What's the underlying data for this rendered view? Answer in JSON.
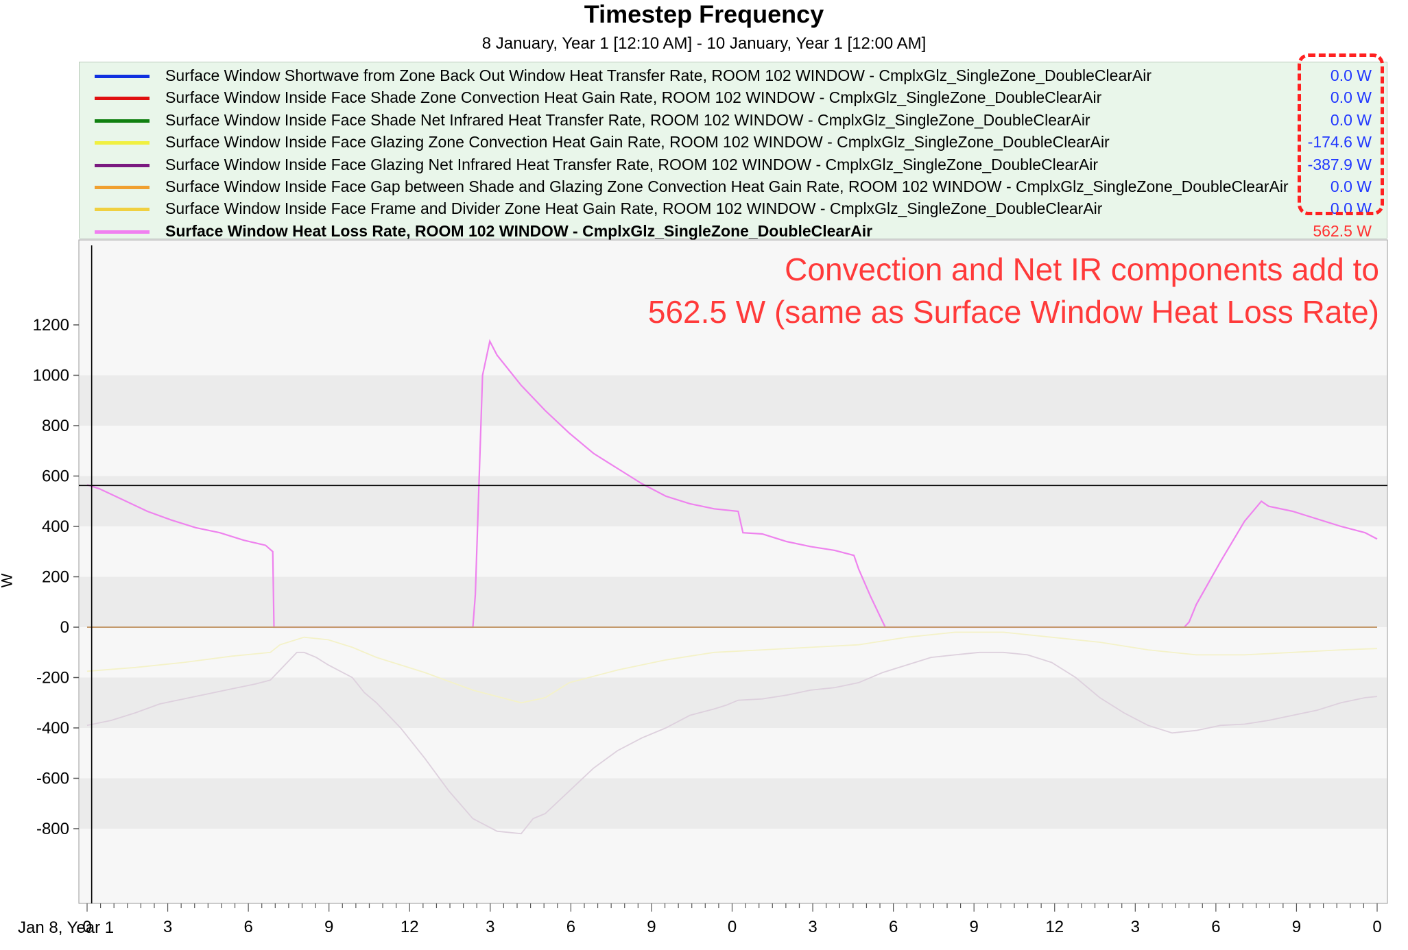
{
  "title": "Timestep Frequency",
  "subtitle": "8 January, Year 1 [12:10 AM] - 10 January, Year 1 [12:00 AM]",
  "x_start_label": "Jan 8, Year 1",
  "y_axis_label": "W",
  "annotation": {
    "line1": "Convection and Net IR components add to",
    "line2": "562.5 W (same as Surface Window Heat Loss Rate)",
    "color": "#ff3a3a"
  },
  "legend": [
    {
      "label": "Surface Window Shortwave from Zone Back Out Window Heat Transfer Rate, ROOM 102 WINDOW - CmplxGlz_SingleZone_DoubleClearAir",
      "value": "0.0 W",
      "color": "#1030e0"
    },
    {
      "label": "Surface Window Inside Face Shade Zone Convection Heat Gain Rate, ROOM 102 WINDOW - CmplxGlz_SingleZone_DoubleClearAir",
      "value": "0.0 W",
      "color": "#e01010"
    },
    {
      "label": "Surface Window Inside Face Shade Net Infrared Heat Transfer Rate, ROOM 102 WINDOW - CmplxGlz_SingleZone_DoubleClearAir",
      "value": "0.0 W",
      "color": "#108010"
    },
    {
      "label": "Surface Window Inside Face Glazing Zone Convection Heat Gain Rate, ROOM 102 WINDOW - CmplxGlz_SingleZone_DoubleClearAir",
      "value": "-174.6 W",
      "color": "#f0f040"
    },
    {
      "label": "Surface Window Inside Face Glazing Net Infrared Heat Transfer Rate, ROOM 102 WINDOW - CmplxGlz_SingleZone_DoubleClearAir",
      "value": "-387.9 W",
      "color": "#7a1a80"
    },
    {
      "label": "Surface Window Inside Face Gap between Shade and Glazing Zone Convection Heat Gain Rate, ROOM 102 WINDOW - CmplxGlz_SingleZone_DoubleClearAir",
      "value": "0.0 W",
      "color": "#f0a030"
    },
    {
      "label": "Surface Window Inside Face Frame and Divider Zone Heat Gain Rate, ROOM 102 WINDOW - CmplxGlz_SingleZone_DoubleClearAir",
      "value": "0.0 W",
      "color": "#f0d040"
    },
    {
      "label": "Surface Window Heat Loss Rate, ROOM 102 WINDOW - CmplxGlz_SingleZone_DoubleClearAir",
      "value": "562.5 W",
      "color": "#f080f0",
      "bold": true
    }
  ],
  "chart_data": {
    "type": "line",
    "title": "Timestep Frequency",
    "subtitle": "8 January, Year 1 [12:10 AM] - 10 January, Year 1 [12:00 AM]",
    "xlabel": "",
    "ylabel": "W",
    "x_range_hours": [
      0,
      48
    ],
    "ylim": [
      -920,
      1230
    ],
    "y_ticks": [
      1200,
      1000,
      800,
      600,
      400,
      200,
      0,
      -200,
      -400,
      -600,
      -800
    ],
    "x_tick_hours": [
      0,
      3,
      6,
      9,
      12,
      15,
      18,
      21,
      24,
      27,
      30,
      33,
      36,
      39,
      42,
      45,
      48
    ],
    "x_tick_labels": [
      "0",
      "3",
      "6",
      "9",
      "12",
      "3",
      "6",
      "9",
      "0",
      "3",
      "6",
      "9",
      "12",
      "3",
      "6",
      "9",
      "0"
    ],
    "cursor": {
      "x_hours": 0.17,
      "y": 562.5
    },
    "grid": "horizontal bands",
    "legend_position": "top",
    "series": [
      {
        "name": "Surface Window Heat Loss Rate, ROOM 102 WINDOW - CmplxGlz_SingleZone_DoubleClearAir",
        "color": "#ee82ee",
        "points": [
          [
            0,
            565
          ],
          [
            0.5,
            550
          ],
          [
            1.5,
            505
          ],
          [
            2.5,
            460
          ],
          [
            3.5,
            425
          ],
          [
            4.5,
            395
          ],
          [
            5.5,
            375
          ],
          [
            6.5,
            345
          ],
          [
            7.4,
            325
          ],
          [
            7.7,
            300
          ],
          [
            7.75,
            0
          ],
          [
            16,
            0
          ],
          [
            16.1,
            130
          ],
          [
            16.4,
            1000
          ],
          [
            16.7,
            1135
          ],
          [
            17,
            1080
          ],
          [
            18,
            960
          ],
          [
            19,
            860
          ],
          [
            20,
            770
          ],
          [
            21,
            690
          ],
          [
            22,
            630
          ],
          [
            23,
            570
          ],
          [
            24,
            520
          ],
          [
            25,
            490
          ],
          [
            26,
            470
          ],
          [
            27,
            460
          ],
          [
            27.2,
            375
          ],
          [
            28,
            370
          ],
          [
            29,
            340
          ],
          [
            30,
            320
          ],
          [
            31,
            305
          ],
          [
            31.8,
            285
          ],
          [
            32,
            230
          ],
          [
            32.5,
            120
          ],
          [
            33,
            20
          ],
          [
            33.1,
            0
          ],
          [
            45.5,
            0
          ],
          [
            45.7,
            20
          ],
          [
            46,
            90
          ],
          [
            47,
            260
          ],
          [
            48,
            420
          ],
          [
            48.7,
            500
          ],
          [
            49,
            480
          ],
          [
            50,
            460
          ],
          [
            51,
            430
          ],
          [
            52,
            400
          ],
          [
            53,
            375
          ],
          [
            53.5,
            350
          ]
        ]
      },
      {
        "name": "Surface Window Inside Face Glazing Net Infrared Heat Transfer Rate, ROOM 102 WINDOW - CmplxGlz_SingleZone_DoubleClearAir",
        "color": "#ddd0dd",
        "points": [
          [
            0,
            -390
          ],
          [
            1,
            -370
          ],
          [
            2,
            -340
          ],
          [
            3,
            -305
          ],
          [
            4,
            -285
          ],
          [
            5,
            -265
          ],
          [
            6,
            -245
          ],
          [
            7,
            -225
          ],
          [
            7.6,
            -210
          ],
          [
            8,
            -170
          ],
          [
            8.7,
            -100
          ],
          [
            9,
            -100
          ],
          [
            9.5,
            -120
          ],
          [
            10,
            -150
          ],
          [
            11,
            -200
          ],
          [
            11.5,
            -260
          ],
          [
            12,
            -300
          ],
          [
            13,
            -400
          ],
          [
            14,
            -520
          ],
          [
            15,
            -650
          ],
          [
            16,
            -760
          ],
          [
            17,
            -810
          ],
          [
            18,
            -820
          ],
          [
            18.5,
            -760
          ],
          [
            19,
            -740
          ],
          [
            20,
            -650
          ],
          [
            21,
            -560
          ],
          [
            22,
            -490
          ],
          [
            23,
            -440
          ],
          [
            24,
            -400
          ],
          [
            25,
            -350
          ],
          [
            26,
            -325
          ],
          [
            26.5,
            -310
          ],
          [
            27,
            -290
          ],
          [
            28,
            -285
          ],
          [
            29,
            -270
          ],
          [
            30,
            -250
          ],
          [
            31,
            -240
          ],
          [
            32,
            -220
          ],
          [
            33,
            -180
          ],
          [
            34,
            -150
          ],
          [
            35,
            -120
          ],
          [
            36,
            -110
          ],
          [
            37,
            -100
          ],
          [
            38,
            -100
          ],
          [
            39,
            -110
          ],
          [
            40,
            -140
          ],
          [
            41,
            -200
          ],
          [
            42,
            -280
          ],
          [
            43,
            -340
          ],
          [
            44,
            -390
          ],
          [
            45,
            -420
          ],
          [
            46,
            -410
          ],
          [
            47,
            -390
          ],
          [
            48,
            -385
          ],
          [
            49,
            -370
          ],
          [
            50,
            -350
          ],
          [
            51,
            -330
          ],
          [
            52,
            -300
          ],
          [
            53,
            -280
          ],
          [
            53.5,
            -275
          ]
        ]
      },
      {
        "name": "Surface Window Inside Face Glazing Zone Convection Heat Gain Rate, ROOM 102 WINDOW - CmplxGlz_SingleZone_DoubleClearAir",
        "color": "#f4f2c8",
        "points": [
          [
            0,
            -175
          ],
          [
            2,
            -160
          ],
          [
            4,
            -140
          ],
          [
            6,
            -115
          ],
          [
            7.6,
            -100
          ],
          [
            8,
            -70
          ],
          [
            9,
            -40
          ],
          [
            10,
            -50
          ],
          [
            11,
            -80
          ],
          [
            12,
            -120
          ],
          [
            14,
            -180
          ],
          [
            16,
            -250
          ],
          [
            18,
            -300
          ],
          [
            19,
            -280
          ],
          [
            20,
            -220
          ],
          [
            22,
            -170
          ],
          [
            24,
            -130
          ],
          [
            26,
            -100
          ],
          [
            28,
            -90
          ],
          [
            30,
            -80
          ],
          [
            32,
            -70
          ],
          [
            34,
            -40
          ],
          [
            36,
            -20
          ],
          [
            38,
            -20
          ],
          [
            40,
            -40
          ],
          [
            42,
            -60
          ],
          [
            44,
            -90
          ],
          [
            46,
            -110
          ],
          [
            48,
            -110
          ],
          [
            50,
            -100
          ],
          [
            52,
            -90
          ],
          [
            53.5,
            -85
          ]
        ]
      },
      {
        "name": "Surface Window Inside Face Gap between Shade and Glazing Zone Convection Heat Gain Rate, ROOM 102 WINDOW - CmplxGlz_SingleZone_DoubleClearAir",
        "color": "#c8a070",
        "points": [
          [
            0,
            0
          ],
          [
            53.5,
            0
          ]
        ]
      }
    ]
  }
}
